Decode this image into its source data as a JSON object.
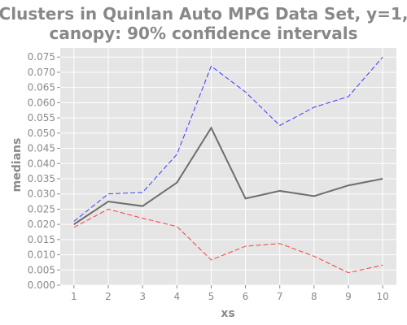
{
  "chart_data": {
    "type": "line",
    "title": "Clusters in Quinlan Auto MPG Data Set, y=1,",
    "subtitle": "canopy: 90% confidence intervals",
    "xlabel": "xs",
    "ylabel": "medians",
    "x": [
      1,
      2,
      3,
      4,
      5,
      6,
      7,
      8,
      9,
      10
    ],
    "xlim": [
      0.6,
      10.4
    ],
    "ylim": [
      0,
      0.078
    ],
    "yticks": [
      "0.000",
      "0.005",
      "0.010",
      "0.015",
      "0.020",
      "0.025",
      "0.030",
      "0.035",
      "0.040",
      "0.045",
      "0.050",
      "0.055",
      "0.060",
      "0.065",
      "0.070",
      "0.075"
    ],
    "xticks": [
      "1",
      "2",
      "3",
      "4",
      "5",
      "6",
      "7",
      "8",
      "9",
      "10"
    ],
    "grid": true,
    "series": [
      {
        "role": "upper",
        "color": "#3b3bff",
        "style": "dashed",
        "values": [
          0.021,
          0.03,
          0.0305,
          0.043,
          0.072,
          0.0635,
          0.0525,
          0.0585,
          0.062,
          0.075
        ]
      },
      {
        "role": "median",
        "color": "#6e6e6e",
        "style": "solid",
        "values": [
          0.02,
          0.0275,
          0.026,
          0.0337,
          0.0517,
          0.0285,
          0.031,
          0.0293,
          0.0328,
          0.035
        ]
      },
      {
        "role": "lower",
        "color": "#ff3b3b",
        "style": "dashed",
        "values": [
          0.019,
          0.025,
          0.022,
          0.0193,
          0.0083,
          0.0128,
          0.0137,
          0.0095,
          0.0041,
          0.0066
        ]
      }
    ]
  }
}
